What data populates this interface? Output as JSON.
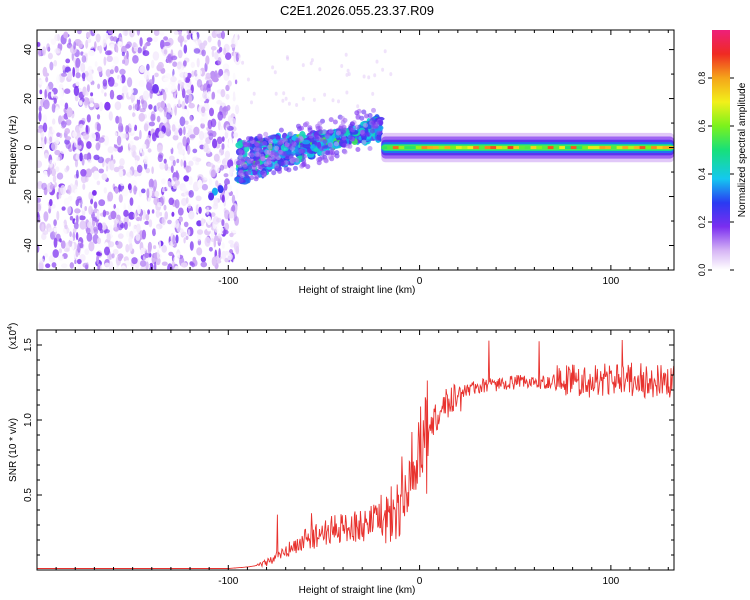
{
  "figure": {
    "title": "C2E1.2026.055.23.37.R09"
  },
  "chart_data": [
    {
      "type": "heatmap",
      "title": "C2E1.2026.055.23.37.R09",
      "xlabel": "Height of straight line (km)",
      "ylabel": "Frequency (Hz)",
      "xlim": [
        -200,
        133
      ],
      "ylim": [
        -50,
        48
      ],
      "x_ticks": [
        -100,
        0,
        100
      ],
      "x_tick_labels": [
        "-100",
        "0",
        "100"
      ],
      "y_ticks": [
        -40,
        -20,
        0,
        20,
        40
      ],
      "y_tick_labels": [
        "-40",
        "-20",
        "0",
        "20",
        "40"
      ],
      "colorbar": {
        "label": "Normalized spectral amplitude",
        "range": [
          0,
          1
        ],
        "ticks": [
          0.0,
          0.2,
          0.4,
          0.6,
          0.8
        ],
        "tick_labels": [
          "0.0",
          "0.2",
          "0.4",
          "0.6",
          "0.8"
        ],
        "colormap": "rainbow"
      },
      "regions": [
        {
          "name": "noise",
          "x_range": [
            -200,
            -95
          ],
          "freq_range": [
            -50,
            48
          ],
          "amplitude": [
            0.0,
            0.2
          ]
        },
        {
          "name": "transition",
          "x_range": [
            -95,
            -20
          ],
          "freq_start": [
            -12,
            0
          ],
          "freq_end": [
            10,
            6
          ],
          "amplitude": [
            0.2,
            0.5
          ]
        },
        {
          "name": "signal",
          "x_range": [
            -20,
            133
          ],
          "freq": 0,
          "bandwidth": 3,
          "amplitude": [
            0.5,
            0.9
          ]
        }
      ]
    },
    {
      "type": "line",
      "title": "",
      "xlabel": "Height of straight line (km)",
      "ylabel": "SNR (10 * v/v)",
      "scale_label": "(x10",
      "scale_exponent": "4",
      "xlim": [
        -200,
        133
      ],
      "ylim": [
        0,
        1.6
      ],
      "x_ticks": [
        -100,
        0,
        100
      ],
      "x_tick_labels": [
        "-100",
        "0",
        "100"
      ],
      "y_ticks": [
        0.5,
        1.0,
        1.5
      ],
      "y_tick_labels": [
        "0.5",
        "1.0",
        "1.5"
      ],
      "color": "#e8322e",
      "series": [
        {
          "name": "SNR",
          "x": [
            -200,
            -150,
            -100,
            -90,
            -85,
            -80,
            -70,
            -60,
            -50,
            -40,
            -30,
            -20,
            -15,
            -10,
            -5,
            0,
            5,
            10,
            15,
            20,
            30,
            40,
            50,
            60,
            70,
            80,
            90,
            100,
            110,
            120,
            133
          ],
          "y": [
            0.01,
            0.01,
            0.01,
            0.02,
            0.03,
            0.05,
            0.12,
            0.2,
            0.25,
            0.28,
            0.3,
            0.33,
            0.38,
            0.42,
            0.5,
            0.7,
            0.92,
            1.05,
            1.12,
            1.18,
            1.22,
            1.24,
            1.25,
            1.25,
            1.26,
            1.27,
            1.26,
            1.27,
            1.27,
            1.26,
            1.25
          ]
        }
      ]
    }
  ]
}
